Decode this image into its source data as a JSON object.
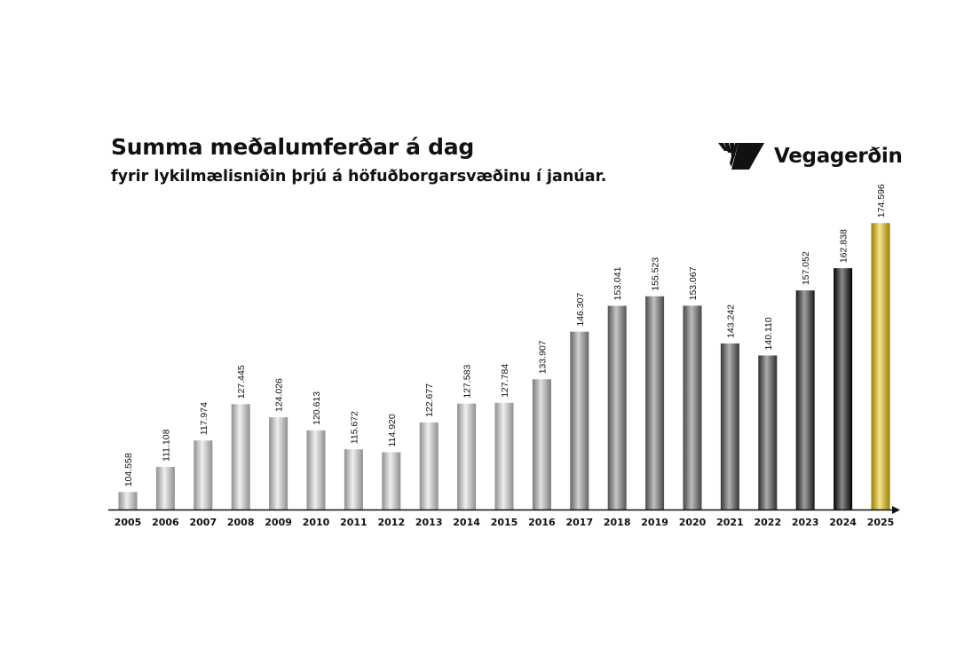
{
  "chart_data": {
    "type": "bar",
    "title": "Summa meðalumferðar á dag",
    "subtitle": "fyrir lykilmælisniðin þrjú á höfuðborgarsvæðinu í janúar.",
    "categories": [
      "2005",
      "2006",
      "2007",
      "2008",
      "2009",
      "2010",
      "2011",
      "2012",
      "2013",
      "2014",
      "2015",
      "2016",
      "2017",
      "2018",
      "2019",
      "2020",
      "2021",
      "2022",
      "2023",
      "2024",
      "2025"
    ],
    "values": [
      104558,
      111108,
      117974,
      127445,
      124026,
      120613,
      115672,
      114920,
      122677,
      127583,
      127784,
      133907,
      146307,
      153041,
      155523,
      153067,
      143242,
      140110,
      157052,
      162838,
      174596
    ],
    "value_labels": [
      "104.558",
      "111.108",
      "117.974",
      "127.445",
      "124.026",
      "120.613",
      "115.672",
      "114.920",
      "122.677",
      "127.583",
      "127.784",
      "133.907",
      "146.307",
      "153.041",
      "155.523",
      "153.067",
      "143.242",
      "140.110",
      "157.052",
      "162.838",
      "174.596"
    ],
    "bar_colors": [
      "#dcdcdc",
      "#dcdcdc",
      "#dcdcdc",
      "#dcdcdc",
      "#dcdcdc",
      "#dcdcdc",
      "#dcdcdc",
      "#dcdcdc",
      "#dcdcdc",
      "#dcdcdc",
      "#dcdcdc",
      "#bdbdbd",
      "#9a9a9a",
      "#808080",
      "#727272",
      "#6a6a6a",
      "#525252",
      "#454545",
      "#2a2a2a",
      "#000000",
      "#e8c400"
    ],
    "ylim": [
      100000,
      175000
    ],
    "xlabel": "",
    "ylabel": "",
    "grid": false,
    "legend": "none"
  },
  "brand": {
    "name": "Vegagerðin"
  }
}
